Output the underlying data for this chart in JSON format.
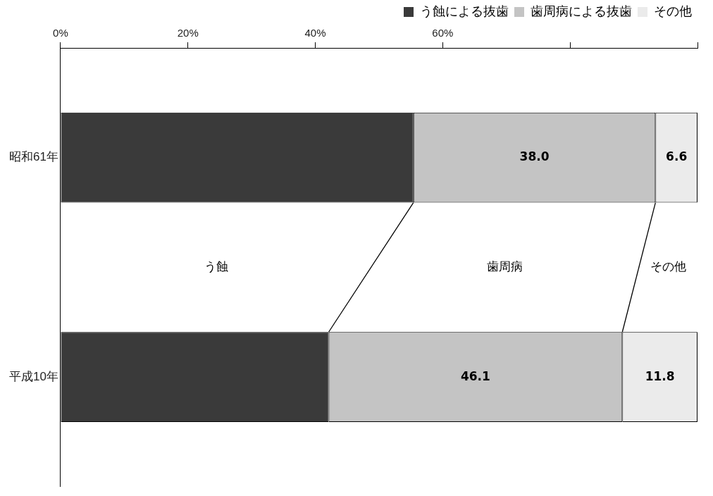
{
  "chart_data": {
    "type": "bar",
    "orientation": "horizontal",
    "stacked": true,
    "categories": [
      "昭和61年",
      "平成10年"
    ],
    "series": [
      {
        "name": "う蝕による抜歯",
        "color": "#3a3a3a",
        "values": [
          55.4,
          42.1
        ]
      },
      {
        "name": "歯周病による抜歯",
        "color": "#c4c4c4",
        "values": [
          38.0,
          46.1
        ],
        "value_labels": [
          "38.0",
          "46.1"
        ]
      },
      {
        "name": "その他",
        "color": "#ebebeb",
        "values": [
          6.6,
          11.8
        ],
        "value_labels": [
          "6.6",
          "11.8"
        ]
      }
    ],
    "xlim": [
      0,
      100
    ],
    "xticks": [
      {
        "value": 0,
        "label": "0%"
      },
      {
        "value": 20,
        "label": "20%"
      },
      {
        "value": 40,
        "label": "40%"
      },
      {
        "value": 60,
        "label": "60%"
      },
      {
        "value": 80,
        "label": null
      },
      {
        "value": 100,
        "label": null
      }
    ],
    "annotations": [
      "う蝕",
      "歯周病",
      "その他"
    ],
    "legend": "top right",
    "grid": false
  }
}
